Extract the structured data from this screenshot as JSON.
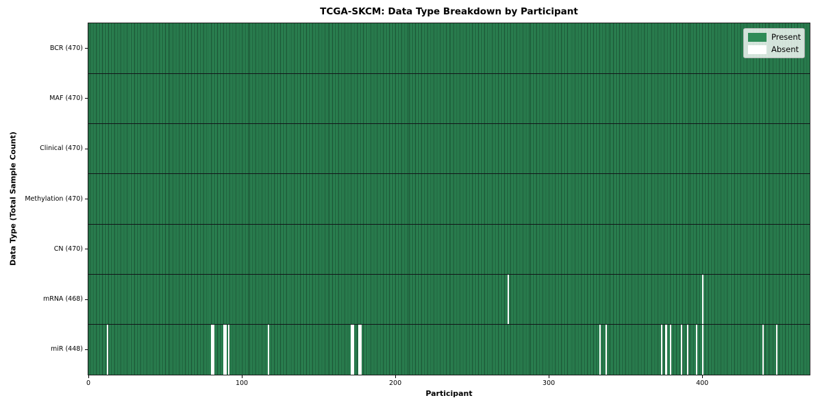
{
  "chart_data": {
    "type": "heatmap",
    "title": "TCGA-SKCM: Data Type Breakdown by Participant",
    "xlabel": "Participant",
    "ylabel": "Data Type (Total Sample Count)",
    "x_range": [
      0,
      470
    ],
    "x_ticks": [
      0,
      100,
      200,
      300,
      400
    ],
    "n_participants": 470,
    "grid": false,
    "legend_position": "upper right",
    "legend": [
      {
        "label": "Present",
        "color": "#2e8b57"
      },
      {
        "label": "Absent",
        "color": "#ffffff"
      }
    ],
    "rows": [
      {
        "label": "BCR (470)",
        "data_type": "BCR",
        "present_count": 470,
        "total": 470,
        "absent_participants": []
      },
      {
        "label": "MAF (470)",
        "data_type": "MAF",
        "present_count": 470,
        "total": 470,
        "absent_participants": []
      },
      {
        "label": "Clinical (470)",
        "data_type": "Clinical",
        "present_count": 470,
        "total": 470,
        "absent_participants": []
      },
      {
        "label": "Methylation (470)",
        "data_type": "Methylation",
        "present_count": 470,
        "total": 470,
        "absent_participants": []
      },
      {
        "label": "CN (470)",
        "data_type": "CN",
        "present_count": 470,
        "total": 470,
        "absent_participants": []
      },
      {
        "label": "mRNA (468)",
        "data_type": "mRNA",
        "present_count": 468,
        "total": 470,
        "absent_participants": [
          273,
          400
        ]
      },
      {
        "label": "miR (448)",
        "data_type": "miR",
        "present_count": 448,
        "total": 470,
        "absent_participants": [
          12,
          80,
          81,
          88,
          89,
          91,
          117,
          171,
          172,
          176,
          177,
          333,
          337,
          373,
          376,
          379,
          386,
          390,
          396,
          400,
          439,
          448
        ]
      }
    ],
    "colors": {
      "present": "#2e8b57",
      "cell_edge": "#17482d",
      "absent": "#ffffff",
      "separator": "#111418",
      "frame": "#1a1a1a"
    }
  }
}
